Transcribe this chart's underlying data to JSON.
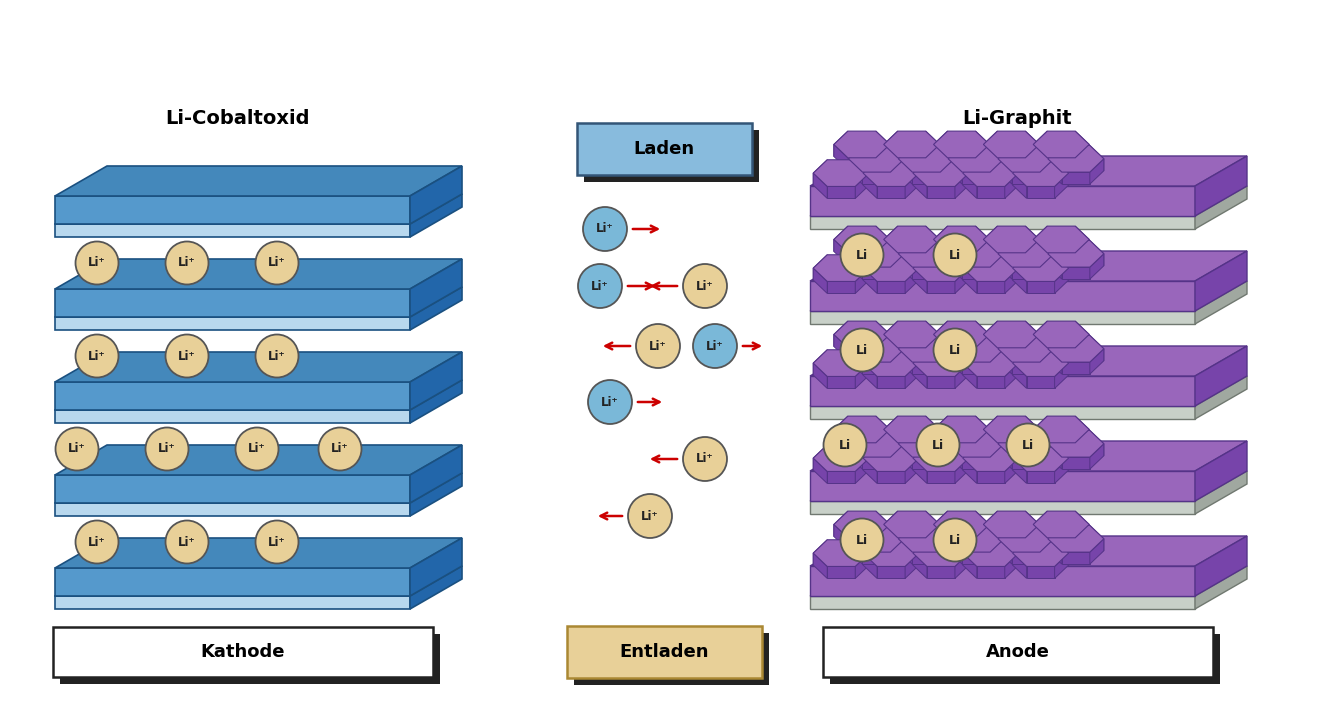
{
  "bg_color": "#ffffff",
  "cathode_title": "Li-Cobaltoxid",
  "anode_title": "Li-Graphit",
  "cathode_label": "Kathode",
  "anode_label": "Anode",
  "laden_label": "Laden",
  "entladen_label": "Entladen",
  "layer_face_light": "#b8d8ee",
  "layer_face_dark": "#5599cc",
  "layer_top_dark": "#4488bb",
  "layer_side_dark": "#2266aa",
  "layer_edge": "#1a5080",
  "li_blue": "#7ab8d8",
  "li_orange": "#e8d098",
  "li_edge": "#555555",
  "li_text": "#222222",
  "arrow_color": "#cc0000",
  "laden_fill": "#88bbdd",
  "laden_edge": "#335577",
  "entladen_fill": "#e8d098",
  "entladen_edge": "#aa8833",
  "box_shadow": "#222222",
  "label_fill": "#ffffff",
  "label_edge": "#222222",
  "hex_fill": "#9966bb",
  "hex_edge": "#553388",
  "hex_side": "#7744aa",
  "sep_fill": "#c8d0c8",
  "sep_top": "#d8e0d8",
  "sep_side": "#a0a8a0",
  "sep_edge": "#707870"
}
